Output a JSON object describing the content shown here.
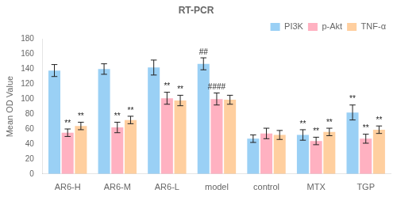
{
  "chart_data": {
    "type": "bar",
    "title": "RT-PCR",
    "ylabel": "Mean OD Value",
    "categories": [
      "AR6-H",
      "AR6-M",
      "AR6-L",
      "model",
      "control",
      "MTX",
      "TGP"
    ],
    "series": [
      {
        "name": "PI3K",
        "values": [
          138,
          140,
          142,
          147,
          47,
          52,
          82
        ],
        "errors": [
          8,
          7,
          10,
          8,
          5,
          7,
          10
        ]
      },
      {
        "name": "p-Akt",
        "values": [
          55,
          62,
          101,
          100,
          54,
          44,
          47
        ],
        "errors": [
          5,
          7,
          8,
          8,
          7,
          5,
          6
        ]
      },
      {
        "name": "TNF-α",
        "values": [
          64,
          72,
          98,
          99,
          52,
          56,
          59
        ],
        "errors": [
          5,
          5,
          7,
          6,
          6,
          5,
          5
        ]
      }
    ],
    "ylim": [
      0,
      180
    ],
    "yticks": [
      0,
      20,
      40,
      60,
      80,
      100,
      120,
      140,
      160,
      180
    ],
    "grid": false,
    "legend": "upper right",
    "annotations": [
      {
        "category": "AR6-H",
        "series": "p-Akt",
        "text": "**"
      },
      {
        "category": "AR6-H",
        "series": "TNF-α",
        "text": "**"
      },
      {
        "category": "AR6-M",
        "series": "p-Akt",
        "text": "**"
      },
      {
        "category": "AR6-M",
        "series": "TNF-α",
        "text": "**"
      },
      {
        "category": "AR6-L",
        "series": "p-Akt",
        "text": "**"
      },
      {
        "category": "AR6-L",
        "series": "TNF-α",
        "text": "**"
      },
      {
        "category": "model",
        "series": "PI3K",
        "text": "##"
      },
      {
        "category": "model",
        "series": "p-Akt",
        "text": "####"
      },
      {
        "category": "MTX",
        "series": "PI3K",
        "text": "**"
      },
      {
        "category": "MTX",
        "series": "p-Akt",
        "text": "**"
      },
      {
        "category": "MTX",
        "series": "TNF-α",
        "text": "**"
      },
      {
        "category": "TGP",
        "series": "PI3K",
        "text": "**"
      },
      {
        "category": "TGP",
        "series": "p-Akt",
        "text": "**"
      },
      {
        "category": "TGP",
        "series": "TNF-α",
        "text": "**"
      }
    ]
  }
}
